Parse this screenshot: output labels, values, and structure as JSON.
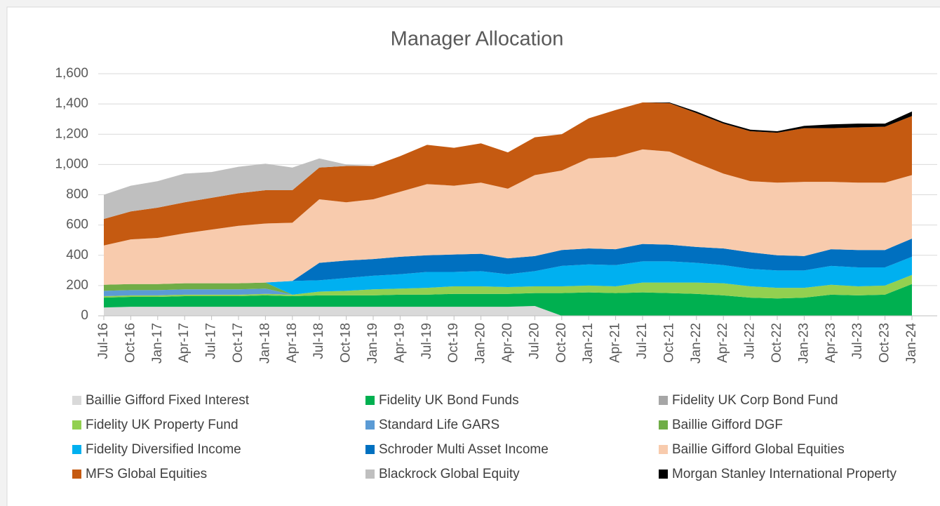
{
  "chart_data": {
    "type": "stacked-area",
    "title": "Manager Allocation",
    "categories": [
      "Jul-16",
      "Oct-16",
      "Jan-17",
      "Apr-17",
      "Jul-17",
      "Oct-17",
      "Jan-18",
      "Apr-18",
      "Jul-18",
      "Oct-18",
      "Jan-19",
      "Apr-19",
      "Jul-19",
      "Oct-19",
      "Jan-20",
      "Apr-20",
      "Jul-20",
      "Oct-20",
      "Jan-21",
      "Apr-21",
      "Jul-21",
      "Oct-21",
      "Jan-22",
      "Apr-22",
      "Jul-22",
      "Oct-22",
      "Jan-23",
      "Apr-23",
      "Jul-23",
      "Oct-23",
      "Jan-24"
    ],
    "series": [
      {
        "name": "Baillie Gifford Fixed Interest",
        "color": "#d9d9d9",
        "values": [
          55,
          60,
          60,
          60,
          60,
          60,
          60,
          60,
          60,
          60,
          60,
          60,
          60,
          60,
          60,
          60,
          65,
          0,
          0,
          0,
          0,
          0,
          0,
          0,
          0,
          0,
          0,
          0,
          0,
          0,
          0
        ]
      },
      {
        "name": "Fidelity UK Bond Funds",
        "color": "#00b050",
        "values": [
          65,
          65,
          65,
          70,
          70,
          70,
          75,
          70,
          75,
          75,
          75,
          80,
          80,
          85,
          85,
          85,
          85,
          150,
          155,
          150,
          155,
          150,
          145,
          135,
          120,
          115,
          120,
          140,
          135,
          140,
          210
        ]
      },
      {
        "name": "Fidelity UK Corp Bond Fund",
        "color": "#a6a6a6",
        "values": [
          0,
          0,
          0,
          0,
          0,
          0,
          0,
          0,
          0,
          0,
          0,
          0,
          0,
          0,
          0,
          0,
          0,
          0,
          0,
          0,
          0,
          0,
          0,
          0,
          0,
          0,
          0,
          0,
          0,
          0,
          0
        ]
      },
      {
        "name": "Fidelity UK Property Fund",
        "color": "#92d050",
        "values": [
          10,
          10,
          10,
          10,
          10,
          10,
          10,
          10,
          25,
          30,
          40,
          40,
          45,
          50,
          50,
          45,
          45,
          45,
          45,
          45,
          65,
          70,
          75,
          80,
          75,
          70,
          65,
          65,
          60,
          60,
          60
        ]
      },
      {
        "name": "Standard Life GARS",
        "color": "#5b9bd5",
        "values": [
          35,
          35,
          35,
          35,
          35,
          35,
          35,
          0,
          0,
          0,
          0,
          0,
          0,
          0,
          0,
          0,
          0,
          0,
          0,
          0,
          0,
          0,
          0,
          0,
          0,
          0,
          0,
          0,
          0,
          0,
          0
        ]
      },
      {
        "name": "Baillie Gifford DGF",
        "color": "#70ad47",
        "values": [
          40,
          40,
          40,
          40,
          40,
          40,
          40,
          0,
          0,
          0,
          0,
          0,
          0,
          0,
          0,
          0,
          0,
          0,
          0,
          0,
          0,
          0,
          0,
          0,
          0,
          0,
          0,
          0,
          0,
          0,
          0
        ]
      },
      {
        "name": "Fidelity Diversified Income",
        "color": "#00b0f0",
        "values": [
          0,
          0,
          0,
          0,
          0,
          0,
          0,
          90,
          75,
          85,
          90,
          95,
          105,
          95,
          100,
          85,
          100,
          135,
          140,
          140,
          140,
          140,
          130,
          120,
          115,
          115,
          115,
          125,
          125,
          120,
          120
        ]
      },
      {
        "name": "Schroder Multi Asset Income",
        "color": "#0070c0",
        "values": [
          0,
          0,
          0,
          0,
          0,
          0,
          0,
          0,
          115,
          115,
          110,
          115,
          110,
          115,
          115,
          105,
          100,
          105,
          105,
          105,
          115,
          110,
          105,
          110,
          110,
          100,
          95,
          110,
          115,
          115,
          120
        ]
      },
      {
        "name": "Baillie Gifford Global Equities",
        "color": "#f8cbad",
        "values": [
          260,
          295,
          305,
          330,
          355,
          380,
          390,
          385,
          420,
          385,
          395,
          430,
          470,
          455,
          470,
          460,
          535,
          525,
          595,
          610,
          625,
          615,
          555,
          495,
          470,
          480,
          490,
          445,
          445,
          445,
          420
        ]
      },
      {
        "name": "MFS Global Equities",
        "color": "#c55a11",
        "values": [
          175,
          185,
          200,
          205,
          210,
          215,
          220,
          215,
          210,
          240,
          220,
          235,
          260,
          250,
          260,
          240,
          250,
          240,
          265,
          310,
          310,
          320,
          330,
          330,
          330,
          330,
          355,
          355,
          365,
          370,
          390
        ]
      },
      {
        "name": "Blackrock Global Equity",
        "color": "#bfbfbf",
        "values": [
          160,
          170,
          175,
          190,
          170,
          175,
          175,
          150,
          60,
          10,
          0,
          0,
          0,
          0,
          0,
          0,
          0,
          0,
          0,
          0,
          0,
          0,
          0,
          0,
          0,
          0,
          0,
          0,
          0,
          0,
          0
        ]
      },
      {
        "name": "Morgan Stanley International Property",
        "color": "#000000",
        "values": [
          0,
          0,
          0,
          0,
          0,
          0,
          0,
          0,
          0,
          0,
          0,
          0,
          0,
          0,
          0,
          0,
          0,
          0,
          0,
          0,
          0,
          5,
          10,
          10,
          10,
          10,
          15,
          25,
          25,
          20,
          30
        ]
      }
    ],
    "ylim": [
      0,
      1600
    ],
    "yticks": [
      0,
      200,
      400,
      600,
      800,
      {
        "value": 1000,
        "label": "1,000"
      },
      {
        "value": 1200,
        "label": "1,200"
      },
      {
        "value": 1400,
        "label": "1,400"
      },
      {
        "value": 1600,
        "label": "1,600"
      }
    ],
    "grid": true
  }
}
